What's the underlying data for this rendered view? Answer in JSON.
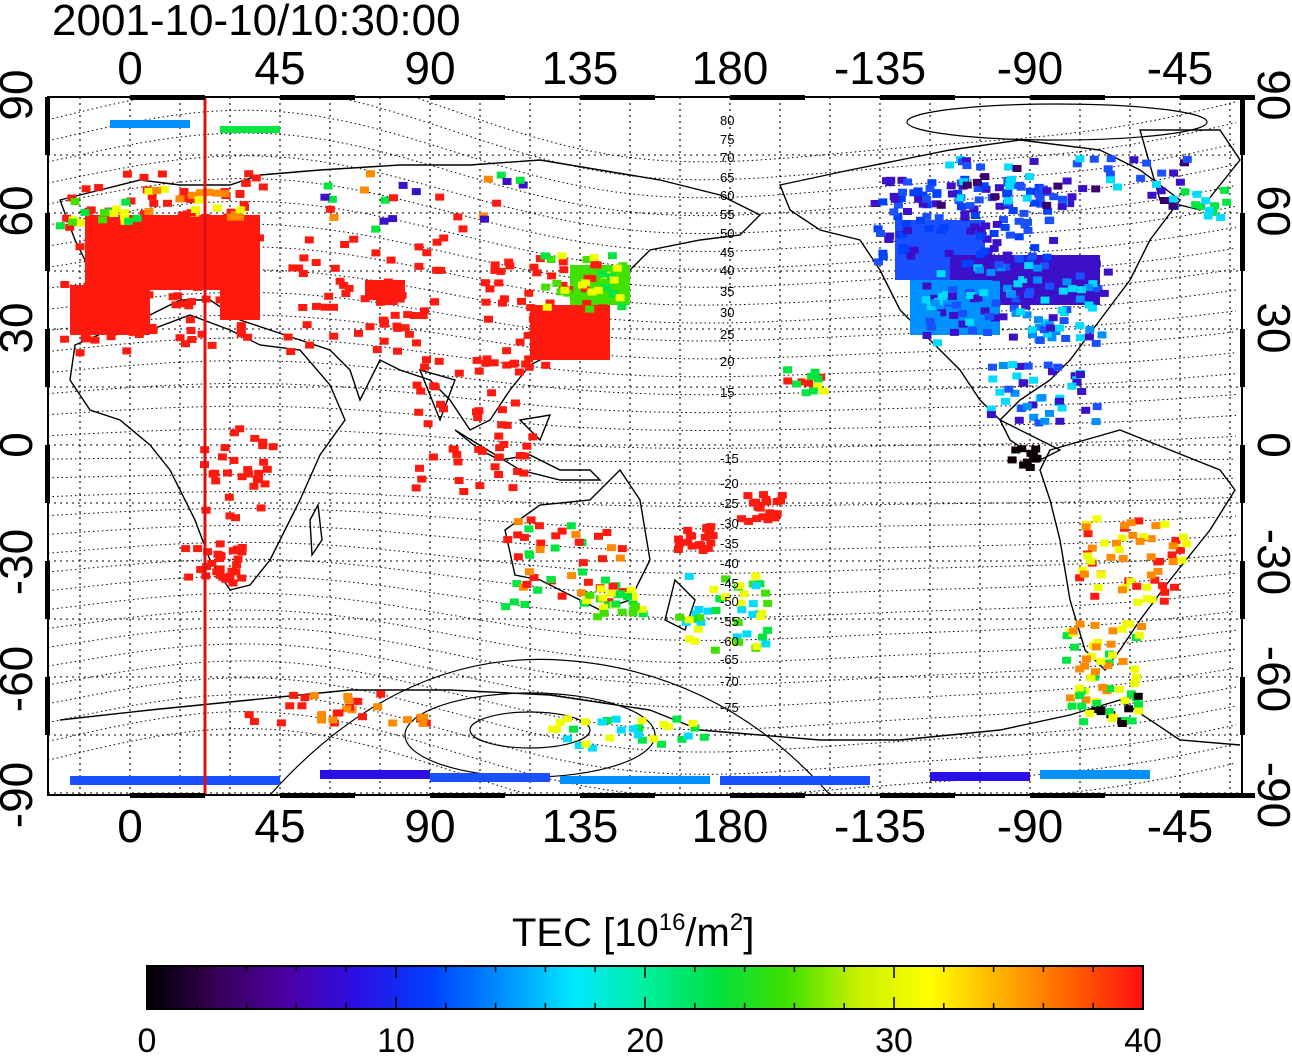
{
  "title": "2001-10-10/10:30:00",
  "x_ticks_top": [
    "0",
    "45",
    "90",
    "135",
    "180",
    "-135",
    "-90",
    "-45"
  ],
  "x_ticks_bottom": [
    "0",
    "45",
    "90",
    "135",
    "180",
    "-135",
    "-90",
    "-45"
  ],
  "y_ticks_left": [
    "90",
    "60",
    "30",
    "0",
    "-30",
    "-60",
    "-90"
  ],
  "y_ticks_right": [
    "90",
    "60",
    "30",
    "0",
    "-30",
    "-60",
    "-90"
  ],
  "contour_labels": [
    "80",
    "75",
    "70",
    "65",
    "60",
    "55",
    "50",
    "45",
    "40",
    "35",
    "30",
    "25",
    "20",
    "15",
    "-15",
    "-20",
    "-25",
    "-30",
    "-35",
    "-40",
    "-45",
    "-50",
    "-55",
    "-60",
    "-65",
    "-70",
    "-75"
  ],
  "colorbar": {
    "title_main": "TEC  [10",
    "title_sup1": "16",
    "title_mid": "/m",
    "title_sup2": "2",
    "title_end": "]",
    "tick_labels": [
      "0",
      "10",
      "20",
      "30",
      "40"
    ],
    "stops": [
      "#000000",
      "#3a0057",
      "#4b00a8",
      "#2a10e6",
      "#0040ff",
      "#0090ff",
      "#00e8ff",
      "#00f0a0",
      "#00e040",
      "#40e000",
      "#c8f000",
      "#ffff00",
      "#ffb000",
      "#ff6000",
      "#ff1010"
    ]
  },
  "legend_colors": {
    "red": "#ff1a10",
    "orange": "#ff8a00",
    "yellow": "#f0ff00",
    "green": "#00e640",
    "cyan": "#00dcff",
    "blue": "#1a50ff",
    "indigo": "#3c10c8",
    "purple": "#3a0070",
    "black": "#100008",
    "terminator": "#e01010"
  }
}
